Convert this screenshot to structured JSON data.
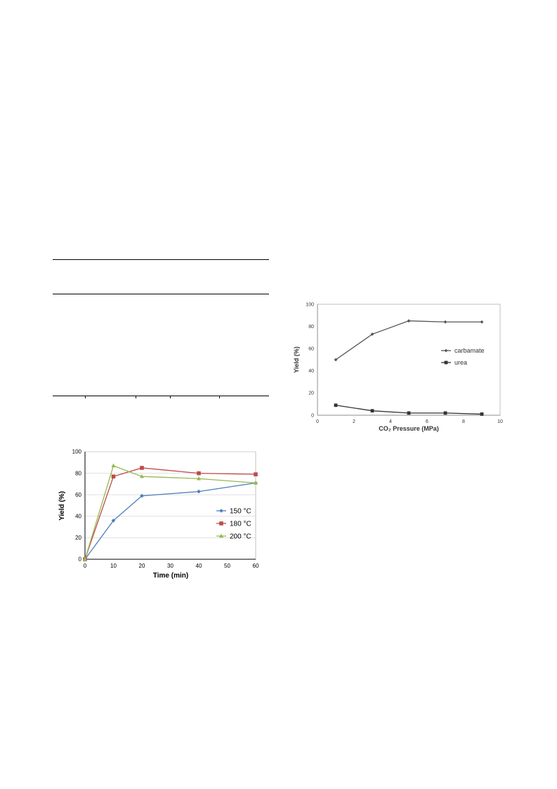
{
  "chart_data": [
    {
      "type": "line",
      "xlabel": "CO₂ Pressure (MPa)",
      "ylabel": "Yield (%)",
      "xlim": [
        0,
        10
      ],
      "ylim": [
        0,
        100
      ],
      "x_ticks": [
        "0",
        "2",
        "4",
        "6",
        "8",
        "10"
      ],
      "y_ticks": [
        "0",
        "20",
        "40",
        "60",
        "80",
        "100"
      ],
      "grid": false,
      "legend": "right",
      "series": [
        {
          "name": "carbamate",
          "x": [
            1,
            3,
            5,
            7,
            9
          ],
          "y": [
            50,
            73,
            85,
            84,
            84
          ],
          "color": "#555555",
          "marker": "diamond"
        },
        {
          "name": "urea",
          "x": [
            1,
            3,
            5,
            7,
            9
          ],
          "y": [
            9,
            4,
            2,
            2,
            1
          ],
          "color": "#333333",
          "marker": "square"
        }
      ]
    },
    {
      "type": "line",
      "xlabel": "Time (min)",
      "ylabel": "Yield (%)",
      "xlim": [
        0,
        60
      ],
      "ylim": [
        0,
        100
      ],
      "x_ticks": [
        "0",
        "10",
        "20",
        "30",
        "40",
        "50",
        "60"
      ],
      "y_ticks": [
        "0",
        "20",
        "40",
        "60",
        "80",
        "100"
      ],
      "grid": true,
      "legend": "right",
      "series": [
        {
          "name": "150 °C",
          "x": [
            0,
            10,
            20,
            40,
            60
          ],
          "y": [
            0,
            36,
            59,
            63,
            71
          ],
          "color": "#4a7ebb",
          "marker": "diamond"
        },
        {
          "name": "180 °C",
          "x": [
            0,
            10,
            20,
            40,
            60
          ],
          "y": [
            0,
            77,
            85,
            80,
            79
          ],
          "color": "#be4b48",
          "marker": "square"
        },
        {
          "name": "200 °C",
          "x": [
            0,
            10,
            20,
            40,
            60
          ],
          "y": [
            0,
            87,
            77,
            75,
            71
          ],
          "color": "#98b954",
          "marker": "triangle"
        }
      ]
    }
  ]
}
